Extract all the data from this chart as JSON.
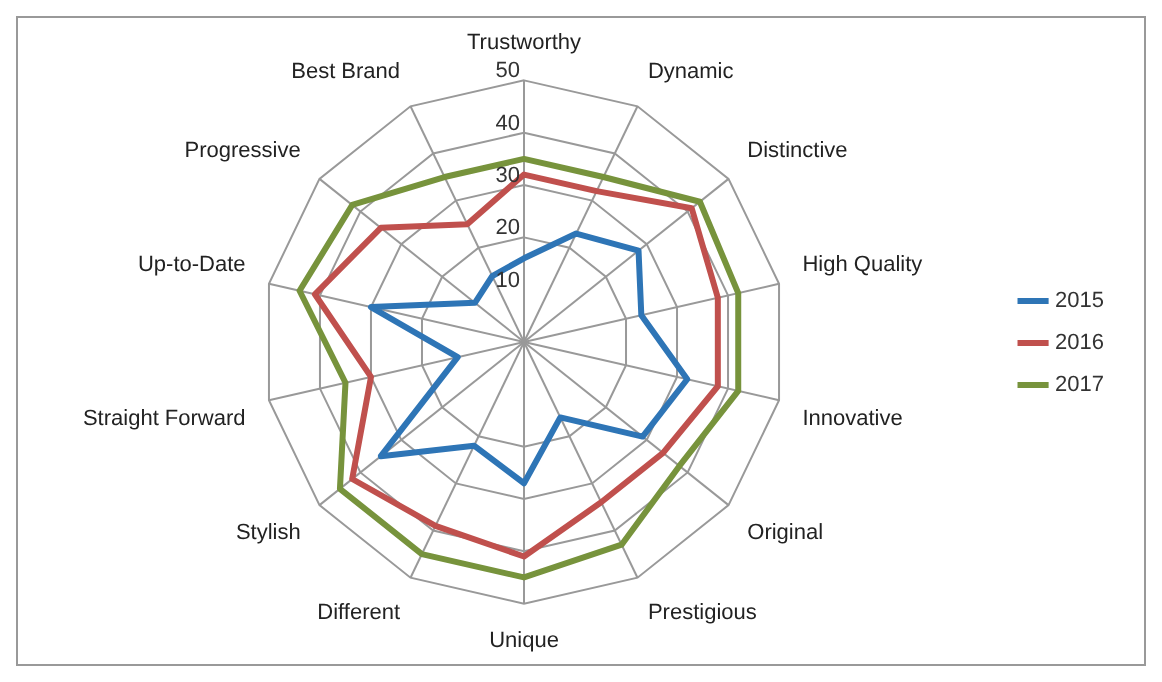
{
  "chart_data": {
    "type": "radar",
    "categories": [
      "Trustworthy",
      "Dynamic",
      "Distinctive",
      "High Quality",
      "Innovative",
      "Original",
      "Prestigious",
      "Unique",
      "Different",
      "Stylish",
      "Straight Forward",
      "Up-to-Date",
      "Progressive",
      "Best Brand"
    ],
    "series": [
      {
        "name": "2015",
        "color": "#2e75b6",
        "values": [
          16,
          23,
          28,
          23,
          32,
          29,
          16,
          27,
          22,
          35,
          13,
          30,
          12,
          14
        ]
      },
      {
        "name": "2016",
        "color": "#c0504d",
        "values": [
          32,
          32,
          41,
          38,
          38,
          34,
          34,
          41,
          39,
          42,
          30,
          41,
          35,
          25
        ]
      },
      {
        "name": "2017",
        "color": "#77933c",
        "values": [
          35,
          35,
          43,
          42,
          42,
          38,
          43,
          45,
          45,
          45,
          35,
          44,
          42,
          35
        ]
      }
    ],
    "ylim": [
      0,
      50
    ],
    "yticks": [
      10,
      20,
      30,
      40,
      50
    ],
    "grid": true,
    "legend": "right",
    "marker": "none"
  }
}
